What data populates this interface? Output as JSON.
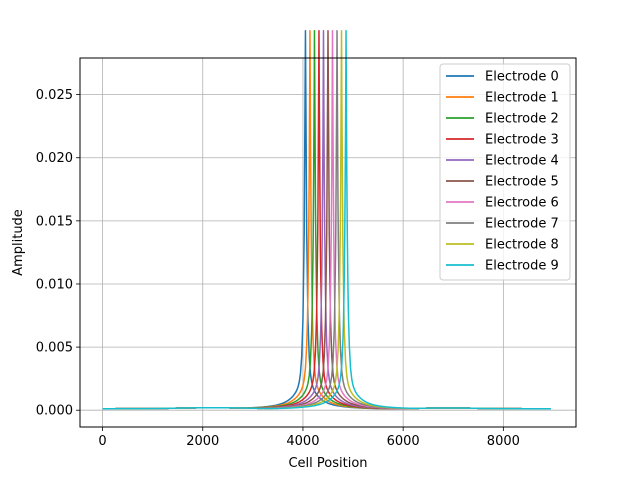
{
  "chart_data": {
    "type": "line",
    "title": "",
    "xlabel": "Cell Position",
    "ylabel": "Amplitude",
    "xlim": [
      -450,
      9450
    ],
    "ylim": [
      -0.00133,
      0.0279
    ],
    "xticks": [
      0,
      2000,
      4000,
      6000,
      8000
    ],
    "xtick_labels": [
      "0",
      "2000",
      "4000",
      "6000",
      "8000"
    ],
    "yticks": [
      0.0,
      0.005,
      0.01,
      0.015,
      0.02,
      0.025
    ],
    "ytick_labels": [
      "0.000",
      "0.005",
      "0.010",
      "0.015",
      "0.020",
      "0.025"
    ],
    "grid": true,
    "legend_position": "top-right",
    "series": [
      {
        "name": "Electrode 0",
        "color": "#1f77b4",
        "center": 4050,
        "peak": 0.0265
      },
      {
        "name": "Electrode 1",
        "color": "#ff7f0e",
        "center": 4140,
        "peak": 0.0265
      },
      {
        "name": "Electrode 2",
        "color": "#2ca02c",
        "center": 4230,
        "peak": 0.0265
      },
      {
        "name": "Electrode 3",
        "color": "#d62728",
        "center": 4320,
        "peak": 0.0265
      },
      {
        "name": "Electrode 4",
        "color": "#9467bd",
        "center": 4410,
        "peak": 0.0265
      },
      {
        "name": "Electrode 5",
        "color": "#8c564b",
        "center": 4500,
        "peak": 0.0265
      },
      {
        "name": "Electrode 6",
        "color": "#e377c2",
        "center": 4590,
        "peak": 0.0265
      },
      {
        "name": "Electrode 7",
        "color": "#7f7f7f",
        "center": 4680,
        "peak": 0.0265
      },
      {
        "name": "Electrode 8",
        "color": "#bcbd22",
        "center": 4770,
        "peak": 0.0265
      },
      {
        "name": "Electrode 9",
        "color": "#17becf",
        "center": 4860,
        "peak": 0.0265
      }
    ],
    "x_range": [
      0,
      8950
    ]
  }
}
